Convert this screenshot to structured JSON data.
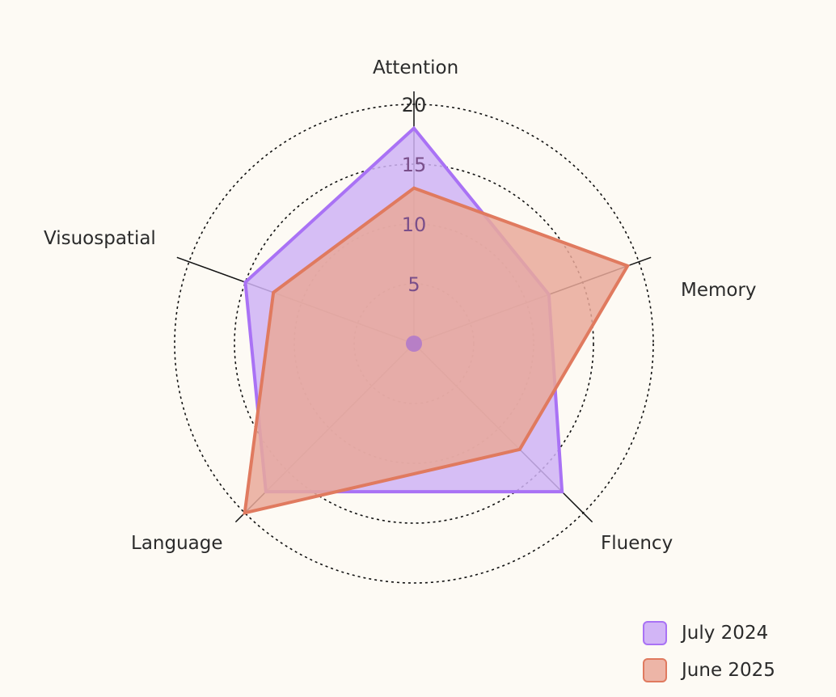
{
  "chart_data": {
    "type": "radar",
    "title": "",
    "axes": [
      "Attention",
      "Memory",
      "Fluency",
      "Language",
      "Visuospatial"
    ],
    "radial_ticks": [
      5,
      10,
      15,
      20
    ],
    "rlim": [
      0,
      20
    ],
    "grid": "dotted circles",
    "legend_position": "bottom-right",
    "series": [
      {
        "name": "July 2024",
        "values": [
          18,
          12,
          17.5,
          17.5,
          15
        ],
        "color": "#a972f5",
        "fill": "#cfb3f5"
      },
      {
        "name": "June 2025",
        "values": [
          13,
          19,
          12.5,
          20,
          12.5
        ],
        "color": "#e07a5f",
        "fill": "#e9a99a"
      }
    ]
  },
  "legend": {
    "items": [
      {
        "label": "July 2024"
      },
      {
        "label": "June 2025"
      }
    ]
  }
}
